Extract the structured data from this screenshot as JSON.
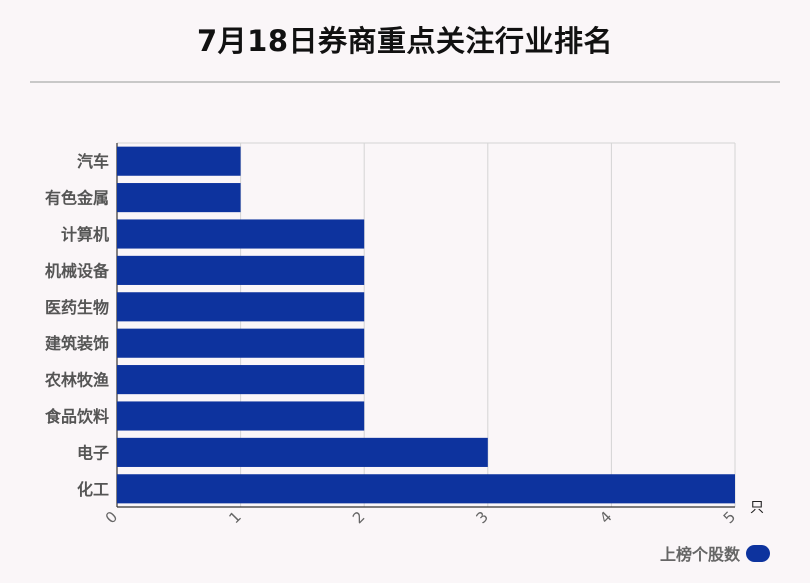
{
  "title": "7月18日券商重点关注行业排名",
  "chart_data": {
    "type": "bar",
    "orientation": "horizontal",
    "categories": [
      "汽车",
      "有色金属",
      "计算机",
      "机械设备",
      "医药生物",
      "建筑装饰",
      "农林牧渔",
      "食品饮料",
      "电子",
      "化工"
    ],
    "series": [
      {
        "name": "上榜个股数",
        "values": [
          1,
          1,
          2,
          2,
          2,
          2,
          2,
          2,
          3,
          5
        ],
        "color": "#0d339e"
      }
    ],
    "xlim": [
      0,
      5
    ],
    "xticks": [
      "0",
      "1",
      "2",
      "3",
      "4",
      "5"
    ],
    "xunit": "只",
    "grid": true,
    "legend_position": "bottom-right"
  }
}
